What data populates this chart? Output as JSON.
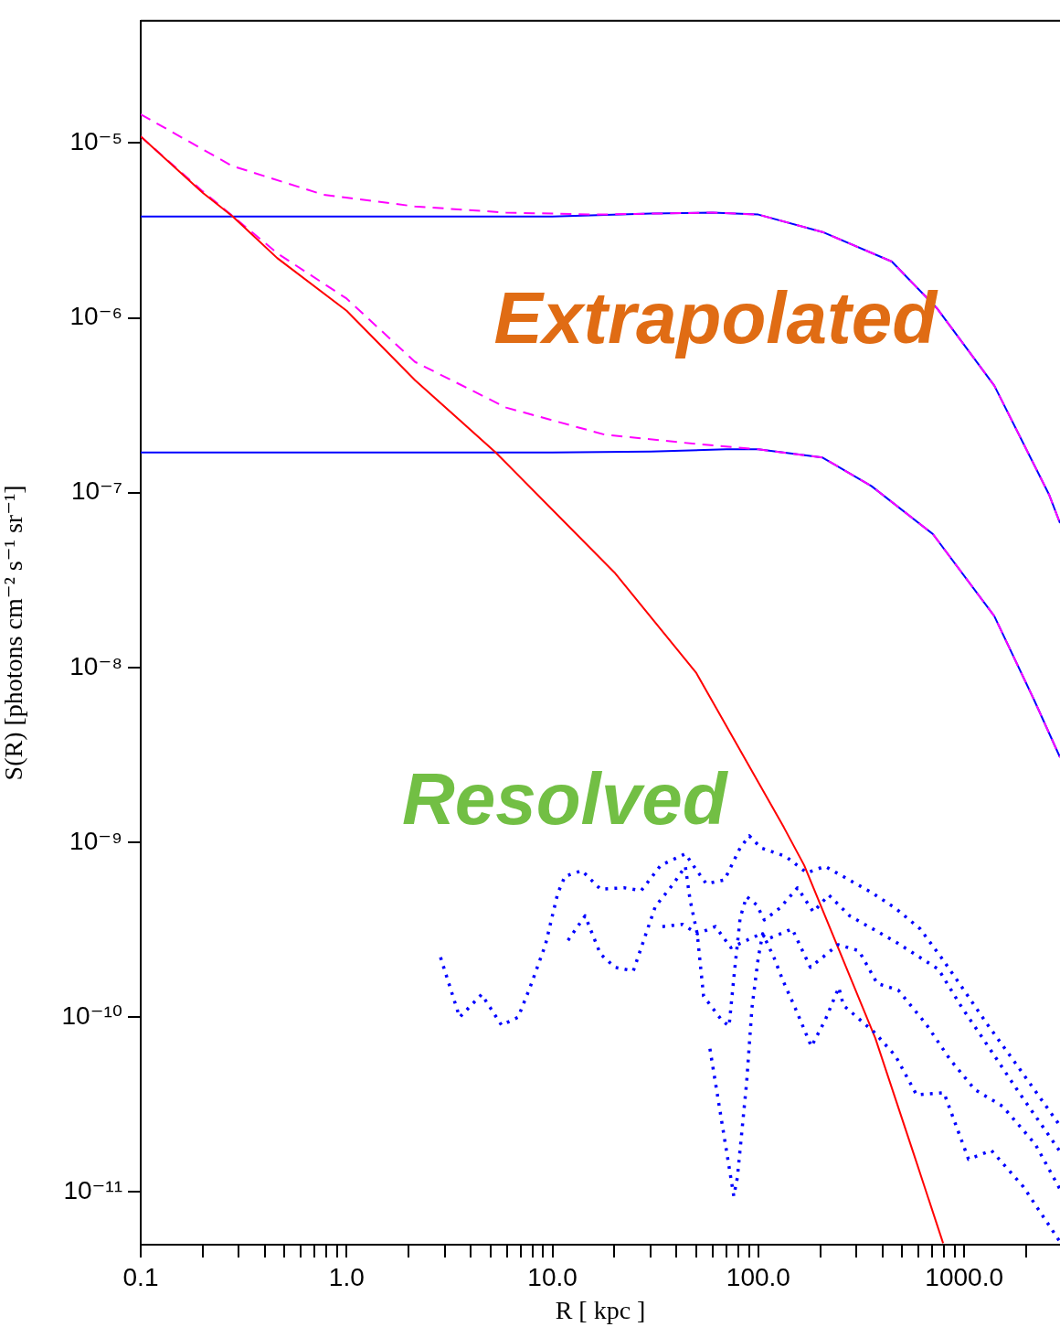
{
  "chart_data": {
    "type": "line",
    "xlabel": "R [ kpc ]",
    "ylabel": "S(R) [photons cm⁻² s⁻¹ sr⁻¹]",
    "log": "xy",
    "grid": false,
    "legend": false,
    "marker": "none",
    "xlim": [
      0.1,
      2920
    ],
    "ylim": [
      5e-12,
      5e-05
    ],
    "xticks": [
      0.1,
      {
        "value": 0.2,
        "label": null
      },
      {
        "value": 0.3,
        "label": null
      },
      {
        "value": 0.4,
        "label": null
      },
      {
        "value": 0.5,
        "label": null
      },
      {
        "value": 0.6,
        "label": null
      },
      {
        "value": 0.7,
        "label": null
      },
      {
        "value": 0.8,
        "label": null
      },
      {
        "value": 0.9,
        "label": null
      },
      {
        "value": 1,
        "label": "1.0"
      },
      {
        "value": 2,
        "label": null
      },
      {
        "value": 3,
        "label": null
      },
      {
        "value": 4,
        "label": null
      },
      {
        "value": 5,
        "label": null
      },
      {
        "value": 6,
        "label": null
      },
      {
        "value": 7,
        "label": null
      },
      {
        "value": 8,
        "label": null
      },
      {
        "value": 9,
        "label": null
      },
      {
        "value": 10,
        "label": "10.0"
      },
      {
        "value": 20,
        "label": null
      },
      {
        "value": 30,
        "label": null
      },
      {
        "value": 40,
        "label": null
      },
      {
        "value": 50,
        "label": null
      },
      {
        "value": 60,
        "label": null
      },
      {
        "value": 70,
        "label": null
      },
      {
        "value": 80,
        "label": null
      },
      {
        "value": 90,
        "label": null
      },
      {
        "value": 100,
        "label": "100.0"
      },
      {
        "value": 200,
        "label": null
      },
      {
        "value": 300,
        "label": null
      },
      {
        "value": 400,
        "label": null
      },
      {
        "value": 500,
        "label": null
      },
      {
        "value": 600,
        "label": null
      },
      {
        "value": 700,
        "label": null
      },
      {
        "value": 800,
        "label": null
      },
      {
        "value": 900,
        "label": null
      },
      {
        "value": 1000,
        "label": "1000.0"
      },
      {
        "value": 2000,
        "label": null
      }
    ],
    "yticks": [
      {
        "value": 1e-11,
        "label": "10⁻¹¹"
      },
      {
        "value": 1e-10,
        "label": "10⁻¹⁰"
      },
      {
        "value": 1e-09,
        "label": "10⁻⁹"
      },
      {
        "value": 1e-08,
        "label": "10⁻⁸"
      },
      {
        "value": 1e-07,
        "label": "10⁻⁷"
      },
      {
        "value": 1e-06,
        "label": "10⁻⁶"
      },
      {
        "value": 1e-05,
        "label": "10⁻⁵"
      }
    ],
    "annotations": [
      "Extrapolated",
      "Resolved"
    ],
    "series": [
      {
        "color": "#0000ff",
        "line_style": "solid",
        "x": [
          0.1,
          10,
          30,
          60,
          100,
          205,
          445,
          735,
          1400,
          2580,
          2920
        ],
        "values": [
          3.8e-06,
          3.8e-06,
          3.95e-06,
          4e-06,
          3.9e-06,
          3.1e-06,
          2.1e-06,
          1.14e-06,
          4.1e-07,
          9.8e-08,
          6.7e-08
        ]
      },
      {
        "color": "#0000ff",
        "line_style": "solid",
        "x": [
          0.1,
          10,
          30,
          70,
          100,
          205,
          355,
          705,
          1400,
          2190,
          2920
        ],
        "values": [
          1.7e-07,
          1.7e-07,
          1.72e-07,
          1.77e-07,
          1.77e-07,
          1.59e-07,
          1.09e-07,
          5.8e-08,
          1.97e-08,
          6.5e-09,
          3.07e-09
        ]
      },
      {
        "color": "#ff00ff",
        "line_style": "dashed",
        "x": [
          0.1,
          0.278,
          0.77,
          2.15,
          5.95,
          16.6,
          60,
          100,
          205,
          445,
          735,
          1400,
          2580,
          2920
        ],
        "values": [
          1.46e-05,
          7.4e-06,
          5.07e-06,
          4.34e-06,
          4e-06,
          3.9e-06,
          4e-06,
          3.9e-06,
          3.1e-06,
          2.1e-06,
          1.14e-06,
          4.1e-07,
          9.8e-08,
          6.7e-08
        ]
      },
      {
        "color": "#ff00ff",
        "line_style": "dashed",
        "x": [
          0.1,
          0.2,
          0.464,
          1,
          2.15,
          5.95,
          17.9,
          50,
          100,
          205,
          355,
          705,
          1400,
          2190,
          2920
        ],
        "values": [
          1.09e-05,
          5.3e-06,
          2.33e-06,
          1.29e-06,
          5.6e-07,
          3.07e-07,
          2.15e-07,
          1.9e-07,
          1.77e-07,
          1.59e-07,
          1.09e-07,
          5.8e-08,
          1.97e-08,
          6.5e-09,
          3.07e-09
        ]
      },
      {
        "color": "#ff0000",
        "line_style": "solid",
        "x": [
          0.1,
          0.2,
          0.28,
          0.46,
          1,
          2.15,
          5.3,
          20,
          50,
          133,
          167,
          370,
          569,
          790
        ],
        "values": [
          1.09e-05,
          5.2e-06,
          3.8e-06,
          2.2e-06,
          1.1e-06,
          4.4e-07,
          1.7e-07,
          3.5e-08,
          9.3e-09,
          1.22e-09,
          7.4e-10,
          7.6e-11,
          1.65e-11,
          5.1e-12
        ]
      },
      {
        "color": "#0000ff",
        "line_style": "dotted",
        "x": [
          2.86,
          3.54,
          4.53,
          5.66,
          6.81,
          7.78,
          9.25,
          10.6,
          11.5,
          13.9,
          17.1,
          22.3,
          27,
          33.6,
          44.2,
          49,
          55.9,
          68.5,
          81.6,
          90.4,
          103,
          136,
          172,
          211,
          251,
          352,
          464,
          611,
          773,
          977,
          1288,
          1807,
          2917
        ],
        "values": [
          2.2e-10,
          1e-10,
          1.35e-10,
          9e-11,
          1e-10,
          1.48e-10,
          2.6e-10,
          5.1e-10,
          6.4e-10,
          6.9e-10,
          5.4e-10,
          5.5e-10,
          5.3e-10,
          7.4e-10,
          8.6e-10,
          7.2e-10,
          5.8e-10,
          6.1e-10,
          9.3e-10,
          1.09e-09,
          9.3e-10,
          8.3e-10,
          6.7e-10,
          7.3e-10,
          6.5e-10,
          5.2e-10,
          4.2e-10,
          3.2e-10,
          2.2e-10,
          1.48e-10,
          9.2e-11,
          5.3e-11,
          2.4e-11
        ]
      },
      {
        "color": "#0000ff",
        "line_style": "dotted",
        "x": [
          11.9,
          14.4,
          17.1,
          20.1,
          24.7,
          27.3,
          31.6,
          38.7,
          44.2,
          46.6,
          50.5,
          54.2,
          66.5,
          72.1,
          76,
          81.6,
          87.7,
          98,
          107,
          127,
          155,
          185,
          220,
          278,
          464,
          750,
          977,
          1288,
          1807,
          2917
        ],
        "values": [
          2.75e-10,
          3.8e-10,
          2.3e-10,
          1.93e-10,
          1.84e-10,
          2.6e-10,
          4.3e-10,
          5.8e-10,
          7.3e-10,
          4.7e-10,
          3e-10,
          1.32e-10,
          9.6e-11,
          8.9e-11,
          1.67e-10,
          3.7e-10,
          4.9e-10,
          4.4e-10,
          3.6e-10,
          4.2e-10,
          5.5e-10,
          4e-10,
          5e-10,
          3.8e-10,
          2.7e-10,
          1.88e-10,
          1.13e-10,
          7e-11,
          3.85e-11,
          1.71e-11
        ]
      },
      {
        "color": "#0000ff",
        "line_style": "dotted",
        "x": [
          34.2,
          42.9,
          50.5,
          61.9,
          73.6,
          103,
          111,
          146,
          179,
          244,
          308,
          378,
          478,
          650,
          857,
          1127,
          1534,
          2213,
          2917
        ],
        "values": [
          3.3e-10,
          3.4e-10,
          3e-10,
          3.3e-10,
          2.5e-10,
          3e-10,
          2.8e-10,
          3.2e-10,
          1.93e-10,
          2.6e-10,
          2.4e-10,
          1.56e-10,
          1.43e-10,
          9.2e-11,
          5.7e-11,
          3.85e-11,
          3.1e-11,
          1.88e-11,
          1.04e-11
        ]
      },
      {
        "color": "#0000ff",
        "line_style": "dotted",
        "x": [
          58.2,
          76,
          79.1,
          87.7,
          93.1,
          100,
          105,
          119,
          132,
          151,
          181,
          211,
          246,
          259,
          366,
          464,
          587,
          797,
          1050,
          1355,
          1941,
          2917
        ],
        "values": [
          6.6e-11,
          9.5e-12,
          1.21e-11,
          4.2e-11,
          1.13e-10,
          2.2e-10,
          3e-10,
          2.2e-10,
          1.61e-10,
          1.13e-10,
          6.8e-11,
          9.6e-11,
          1.48e-10,
          1.17e-10,
          8.2e-11,
          6e-11,
          3.6e-11,
          3.7e-11,
          1.54e-11,
          1.73e-11,
          1.07e-11,
          5.2e-12
        ]
      }
    ]
  }
}
